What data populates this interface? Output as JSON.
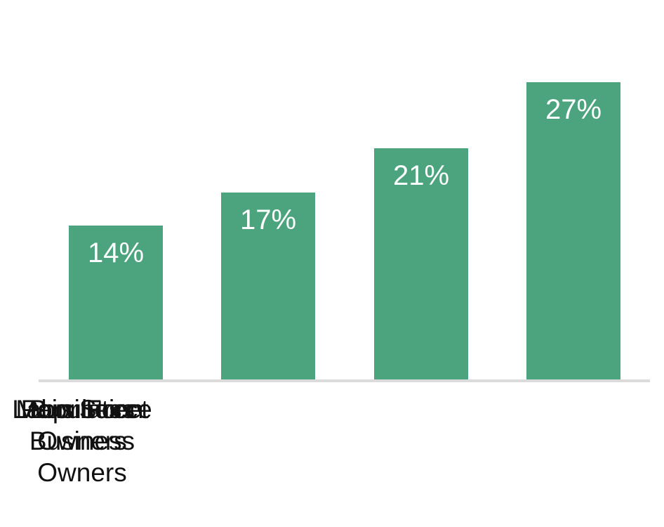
{
  "chart_data": {
    "type": "bar",
    "categories": [
      "Population",
      "Labor Force",
      "Business Owners",
      "Main Street Business Owners"
    ],
    "values": [
      14,
      17,
      21,
      27
    ],
    "value_labels": [
      "14%",
      "17%",
      "21%",
      "27%"
    ],
    "title": "",
    "xlabel": "",
    "ylabel": "",
    "ylim": [
      0,
      34.4
    ],
    "grid": false,
    "legend": false,
    "data_label_position": "inside-top",
    "colors": {
      "bar": "#4BA47D",
      "value_label": "#FFFFFF",
      "axis_line": "#DBDBDB",
      "category_label": "#111111",
      "background": "#FFFFFF"
    }
  }
}
